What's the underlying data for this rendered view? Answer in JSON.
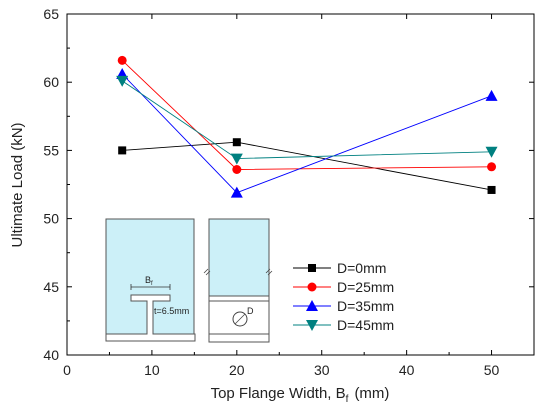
{
  "chart_data": {
    "type": "line",
    "title": "",
    "xlabel": "Top Flange Width, B",
    "xlabel_subscript": "f",
    "xlabel_unit": "(mm)",
    "ylabel": "Ultimate Load  (kN)",
    "xlim": [
      0,
      55
    ],
    "ylim": [
      40,
      65
    ],
    "xticks": [
      0,
      10,
      20,
      30,
      40,
      50
    ],
    "yticks": [
      40,
      45,
      50,
      55,
      60,
      65
    ],
    "grid": false,
    "legend_position": "lower-right",
    "series": [
      {
        "name": "D=0mm",
        "marker": "square",
        "color": "#000000",
        "x": [
          6.5,
          20,
          50
        ],
        "y": [
          55.0,
          55.6,
          52.1
        ]
      },
      {
        "name": "D=25mm",
        "marker": "circle",
        "color": "#ff0000",
        "x": [
          6.5,
          20,
          50
        ],
        "y": [
          61.6,
          53.6,
          53.8
        ]
      },
      {
        "name": "D=35mm",
        "marker": "triangle-up",
        "color": "#0000ff",
        "x": [
          6.5,
          20,
          50
        ],
        "y": [
          60.6,
          51.9,
          59.0
        ]
      },
      {
        "name": "D=45mm",
        "marker": "triangle-down",
        "color": "#008080",
        "x": [
          6.5,
          20,
          50
        ],
        "y": [
          60.1,
          54.4,
          54.9
        ]
      }
    ],
    "inset": {
      "flange_label": "B",
      "flange_label_subscript": "f",
      "thickness_label": "t=6.5mm",
      "hole_label": "D",
      "fill_color": "#ccf0f8"
    }
  }
}
